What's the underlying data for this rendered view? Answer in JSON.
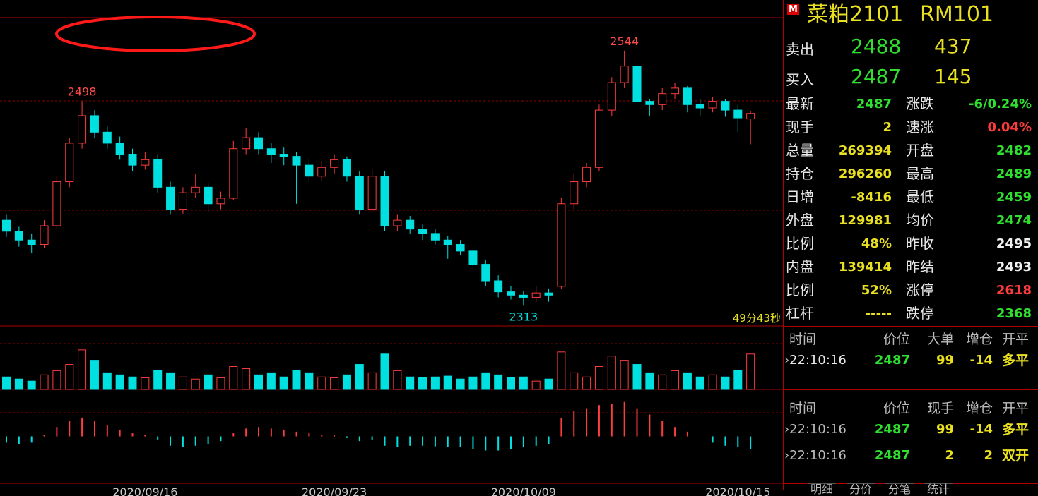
{
  "header": {
    "badge": "M",
    "name": "菜粕2101",
    "code": "RM101"
  },
  "quote": [
    {
      "label": "卖出",
      "price": 2488,
      "volume": 437
    },
    {
      "label": "买入",
      "price": 2487,
      "volume": 145
    }
  ],
  "stats": [
    [
      {
        "label": "最新",
        "value": 2487,
        "color": "#30e030"
      },
      {
        "label": "涨跌",
        "value": "-6/0.24%",
        "color": "#30e030"
      }
    ],
    [
      {
        "label": "现手",
        "value": 2,
        "color": "#e8e020"
      },
      {
        "label": "速涨",
        "value": "0.04%",
        "color": "#ff3c3c"
      }
    ],
    [
      {
        "label": "总量",
        "value": 269394,
        "color": "#e8e020"
      },
      {
        "label": "开盘",
        "value": 2482,
        "color": "#30e030"
      }
    ],
    [
      {
        "label": "持仓",
        "value": 296260,
        "color": "#e8e020"
      },
      {
        "label": "最高",
        "value": 2489,
        "color": "#30e030"
      }
    ],
    [
      {
        "label": "日增",
        "value": -8416,
        "color": "#e8e020"
      },
      {
        "label": "最低",
        "value": 2459,
        "color": "#30e030"
      }
    ],
    [
      {
        "label": "外盘",
        "value": 129981,
        "color": "#e8e020"
      },
      {
        "label": "均价",
        "value": 2474,
        "color": "#30e030"
      }
    ],
    [
      {
        "label": "比例",
        "value": "48%",
        "color": "#e8e020"
      },
      {
        "label": "昨收",
        "value": 2495,
        "color": "#f0f0f0"
      }
    ],
    [
      {
        "label": "内盘",
        "value": 139414,
        "color": "#e8e020"
      },
      {
        "label": "昨结",
        "value": 2493,
        "color": "#f0f0f0"
      }
    ],
    [
      {
        "label": "比例",
        "value": "52%",
        "color": "#e8e020"
      },
      {
        "label": "涨停",
        "value": 2618,
        "color": "#ff3c3c"
      }
    ],
    [
      {
        "label": "杠杆",
        "value": "-----",
        "color": "#e8e020"
      },
      {
        "label": "跌停",
        "value": 2368,
        "color": "#30e030"
      }
    ]
  ],
  "timer": "49分43秒",
  "trades_big": {
    "headers": [
      "时间",
      "价位",
      "大单",
      "增仓",
      "开平"
    ],
    "rows": [
      [
        "22:10:16",
        2487,
        99,
        -14,
        "多平"
      ]
    ]
  },
  "trades": {
    "headers": [
      "时间",
      "价位",
      "现手",
      "增仓",
      "开平"
    ],
    "rows": [
      [
        "22:10:16",
        2487,
        99,
        -14,
        "多平"
      ],
      [
        "22:10:16",
        2487,
        2,
        2,
        "双开"
      ]
    ]
  },
  "tabs": [
    "明细",
    "分价",
    "分笔",
    "统计"
  ],
  "chart_data": {
    "type": "candlestick",
    "up_color": "#ff3c3c",
    "down_color": "#00e0e0",
    "ylim": [
      2294,
      2574
    ],
    "categories": [
      null,
      null,
      null,
      null,
      null,
      null,
      null,
      null,
      null,
      null,
      null,
      "2020/09/16",
      null,
      null,
      null,
      null,
      null,
      null,
      null,
      null,
      null,
      null,
      null,
      null,
      null,
      null,
      "2020/09/23",
      null,
      null,
      null,
      null,
      null,
      null,
      null,
      null,
      null,
      null,
      null,
      null,
      null,
      null,
      "2020/10/09",
      null,
      null,
      null,
      null,
      null,
      null,
      null,
      null,
      null,
      null,
      null,
      null,
      null,
      null,
      null,
      null,
      "2020/10/15",
      null
    ],
    "candles": [
      [
        2390,
        2395,
        2375,
        2380
      ],
      [
        2380,
        2384,
        2366,
        2372
      ],
      [
        2372,
        2378,
        2360,
        2368
      ],
      [
        2368,
        2390,
        2365,
        2385
      ],
      [
        2385,
        2430,
        2382,
        2425
      ],
      [
        2425,
        2465,
        2420,
        2460
      ],
      [
        2460,
        2498,
        2455,
        2485
      ],
      [
        2485,
        2490,
        2465,
        2470
      ],
      [
        2470,
        2475,
        2455,
        2460
      ],
      [
        2460,
        2466,
        2445,
        2450
      ],
      [
        2450,
        2455,
        2435,
        2440
      ],
      [
        2440,
        2452,
        2436,
        2445
      ],
      [
        2445,
        2450,
        2415,
        2420
      ],
      [
        2420,
        2425,
        2395,
        2400
      ],
      [
        2400,
        2420,
        2396,
        2415
      ],
      [
        2415,
        2432,
        2410,
        2420
      ],
      [
        2420,
        2424,
        2398,
        2405
      ],
      [
        2405,
        2416,
        2400,
        2410
      ],
      [
        2410,
        2462,
        2408,
        2455
      ],
      [
        2455,
        2474,
        2450,
        2465
      ],
      [
        2465,
        2470,
        2450,
        2455
      ],
      [
        2455,
        2460,
        2442,
        2450
      ],
      [
        2450,
        2456,
        2440,
        2448
      ],
      [
        2448,
        2452,
        2405,
        2440
      ],
      [
        2440,
        2446,
        2425,
        2430
      ],
      [
        2430,
        2444,
        2426,
        2438
      ],
      [
        2438,
        2450,
        2432,
        2445
      ],
      [
        2445,
        2448,
        2425,
        2430
      ],
      [
        2430,
        2435,
        2395,
        2400
      ],
      [
        2400,
        2436,
        2398,
        2430
      ],
      [
        2430,
        2435,
        2380,
        2385
      ],
      [
        2385,
        2395,
        2380,
        2390
      ],
      [
        2390,
        2394,
        2378,
        2382
      ],
      [
        2382,
        2386,
        2372,
        2378
      ],
      [
        2378,
        2382,
        2368,
        2372
      ],
      [
        2372,
        2376,
        2355,
        2368
      ],
      [
        2368,
        2372,
        2358,
        2362
      ],
      [
        2362,
        2366,
        2345,
        2350
      ],
      [
        2350,
        2354,
        2330,
        2335
      ],
      [
        2335,
        2340,
        2320,
        2325
      ],
      [
        2325,
        2330,
        2318,
        2322
      ],
      [
        2322,
        2326,
        2313,
        2320
      ],
      [
        2320,
        2330,
        2316,
        2324
      ],
      [
        2324,
        2328,
        2316,
        2322
      ],
      [
        2330,
        2410,
        2328,
        2405
      ],
      [
        2405,
        2432,
        2400,
        2425
      ],
      [
        2425,
        2442,
        2420,
        2438
      ],
      [
        2438,
        2495,
        2435,
        2490
      ],
      [
        2490,
        2520,
        2485,
        2515
      ],
      [
        2515,
        2544,
        2510,
        2530
      ],
      [
        2530,
        2534,
        2492,
        2498
      ],
      [
        2498,
        2500,
        2485,
        2495
      ],
      [
        2495,
        2510,
        2490,
        2505
      ],
      [
        2505,
        2515,
        2500,
        2510
      ],
      [
        2510,
        2512,
        2488,
        2495
      ],
      [
        2495,
        2500,
        2485,
        2492
      ],
      [
        2492,
        2502,
        2488,
        2498
      ],
      [
        2498,
        2500,
        2484,
        2490
      ],
      [
        2490,
        2495,
        2470,
        2483
      ],
      [
        2482,
        2489,
        2459,
        2487
      ]
    ],
    "high_labels": [
      2498,
      2544
    ],
    "low_labels": [
      2313
    ],
    "volume_ylim": [
      0,
      110
    ],
    "volume": [
      30,
      25,
      20,
      35,
      45,
      60,
      95,
      70,
      40,
      35,
      30,
      28,
      45,
      40,
      30,
      25,
      35,
      28,
      55,
      50,
      35,
      40,
      30,
      45,
      40,
      30,
      28,
      35,
      60,
      40,
      85,
      45,
      30,
      28,
      30,
      32,
      25,
      30,
      40,
      35,
      28,
      30,
      20,
      25,
      90,
      40,
      30,
      55,
      80,
      70,
      60,
      40,
      35,
      45,
      40,
      30,
      35,
      30,
      45,
      85
    ],
    "macd_ylim": [
      -1.5,
      1.5
    ],
    "macd_hist": [
      -0.2,
      -0.25,
      -0.2,
      0.05,
      0.3,
      0.5,
      0.6,
      0.5,
      0.35,
      0.2,
      0.1,
      0.05,
      -0.1,
      -0.3,
      -0.35,
      -0.3,
      -0.25,
      -0.15,
      0.1,
      0.25,
      0.3,
      0.25,
      0.2,
      0.15,
      0.1,
      0.05,
      0.05,
      -0.05,
      -0.15,
      -0.1,
      -0.3,
      -0.35,
      -0.3,
      -0.3,
      -0.32,
      -0.35,
      -0.35,
      -0.4,
      -0.45,
      -0.45,
      -0.4,
      -0.35,
      -0.3,
      -0.25,
      0.6,
      0.8,
      0.9,
      1.0,
      1.05,
      1.1,
      0.9,
      0.7,
      0.5,
      0.3,
      0.15,
      0.0,
      -0.2,
      -0.3,
      -0.35,
      -0.4
    ]
  }
}
